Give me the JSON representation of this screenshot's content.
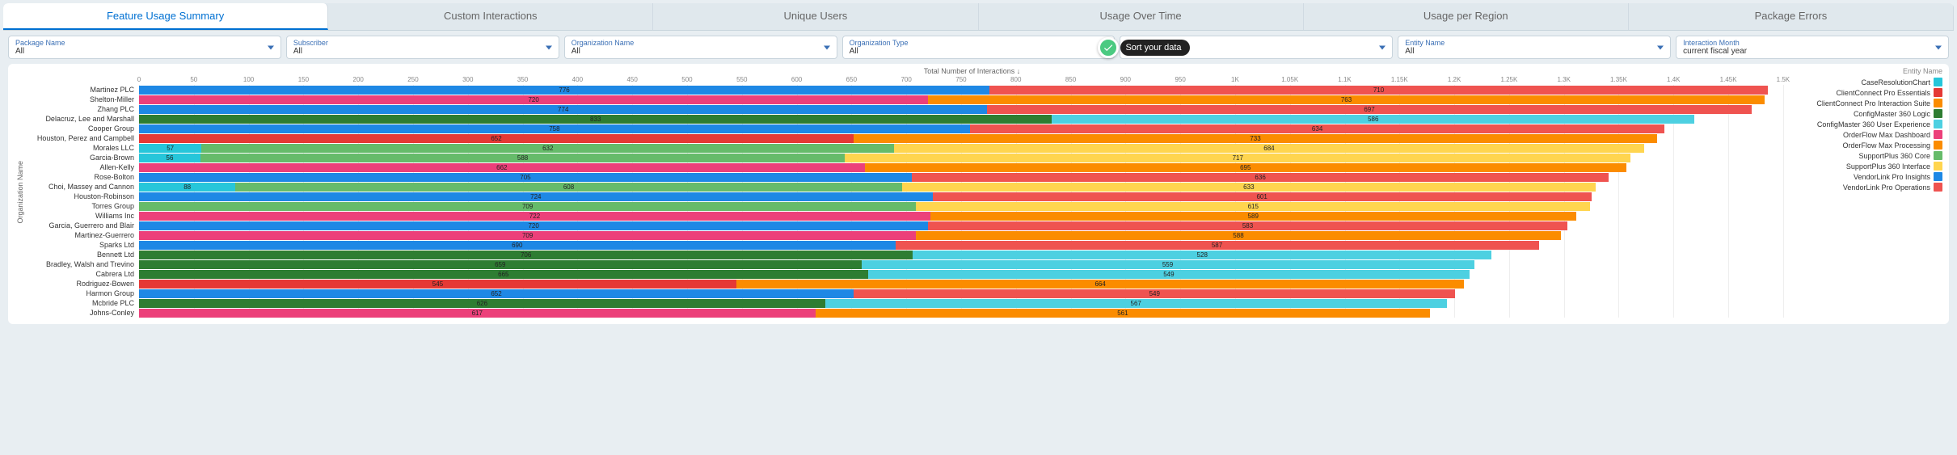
{
  "tabs": [
    "Feature Usage Summary",
    "Custom Interactions",
    "Unique Users",
    "Usage Over Time",
    "Usage per Region",
    "Package Errors"
  ],
  "active_tab": 0,
  "filters": [
    {
      "label": "Package Name",
      "value": "All"
    },
    {
      "label": "Subscriber",
      "value": "All"
    },
    {
      "label": "Organization Name",
      "value": "All"
    },
    {
      "label": "Organization Type",
      "value": "All"
    },
    {
      "label": "",
      "value": "",
      "tooltip": "Sort your data"
    },
    {
      "label": "Entity Name",
      "value": "All"
    },
    {
      "label": "Interaction Month",
      "value": "current fiscal year"
    }
  ],
  "chart": {
    "type": "stacked-bar-horizontal",
    "xaxis_title": "Total Number of Interactions ↓",
    "yaxis_title": "Organization Name",
    "xlim": [
      0,
      1520
    ],
    "xtick_step": 50,
    "xtick_labels": [
      "0",
      "50",
      "100",
      "150",
      "200",
      "250",
      "300",
      "350",
      "400",
      "450",
      "500",
      "550",
      "600",
      "650",
      "700",
      "750",
      "800",
      "850",
      "900",
      "950",
      "1K",
      "1.05K",
      "1.1K",
      "1.15K",
      "1.2K",
      "1.25K",
      "1.3K",
      "1.35K",
      "1.4K",
      "1.45K",
      "1.5K"
    ],
    "legend_title": "Entity Name",
    "legend": [
      {
        "name": "CaseResolutionChart",
        "color": "#26c6da"
      },
      {
        "name": "ClientConnect Pro Essentials",
        "color": "#e53935"
      },
      {
        "name": "ClientConnect Pro Interaction Suite",
        "color": "#fb8c00"
      },
      {
        "name": "ConfigMaster 360 Logic",
        "color": "#2e7d32"
      },
      {
        "name": "ConfigMaster 360 User Experience",
        "color": "#4dd0e1"
      },
      {
        "name": "OrderFlow Max Dashboard",
        "color": "#ec407a"
      },
      {
        "name": "OrderFlow Max Processing",
        "color": "#fb8c00"
      },
      {
        "name": "SupportPlus 360 Core",
        "color": "#66bb6a"
      },
      {
        "name": "SupportPlus 360 Interface",
        "color": "#ffd54f"
      },
      {
        "name": "VendorLink Pro Insights",
        "color": "#1e88e5"
      },
      {
        "name": "VendorLink Pro Operations",
        "color": "#ef5350"
      }
    ],
    "rows": [
      {
        "label": "Martinez PLC",
        "segs": [
          {
            "v": 776,
            "c": "#1e88e5"
          },
          {
            "v": 710,
            "c": "#ef5350"
          }
        ]
      },
      {
        "label": "Shelton-Miller",
        "segs": [
          {
            "v": 720,
            "c": "#ec407a"
          },
          {
            "v": 763,
            "c": "#fb8c00"
          }
        ]
      },
      {
        "label": "Zhang PLC",
        "segs": [
          {
            "v": 774,
            "c": "#1e88e5"
          },
          {
            "v": 697,
            "c": "#ef5350"
          }
        ]
      },
      {
        "label": "Delacruz, Lee and Marshall",
        "segs": [
          {
            "v": 833,
            "c": "#2e7d32"
          },
          {
            "v": 586,
            "c": "#4dd0e1"
          }
        ]
      },
      {
        "label": "Cooper Group",
        "segs": [
          {
            "v": 758,
            "c": "#1e88e5"
          },
          {
            "v": 634,
            "c": "#ef5350"
          }
        ]
      },
      {
        "label": "Houston, Perez and Campbell",
        "segs": [
          {
            "v": 652,
            "c": "#e53935"
          },
          {
            "v": 733,
            "c": "#fb8c00"
          }
        ]
      },
      {
        "label": "Morales LLC",
        "segs": [
          {
            "v": 57,
            "c": "#26c6da"
          },
          {
            "v": 632,
            "c": "#66bb6a"
          },
          {
            "v": 684,
            "c": "#ffd54f"
          }
        ]
      },
      {
        "label": "Garcia-Brown",
        "segs": [
          {
            "v": 56,
            "c": "#26c6da"
          },
          {
            "v": 588,
            "c": "#66bb6a"
          },
          {
            "v": 717,
            "c": "#ffd54f"
          }
        ]
      },
      {
        "label": "Allen-Kelly",
        "segs": [
          {
            "v": 662,
            "c": "#ec407a"
          },
          {
            "v": 695,
            "c": "#fb8c00"
          }
        ]
      },
      {
        "label": "Rose-Bolton",
        "segs": [
          {
            "v": 705,
            "c": "#1e88e5"
          },
          {
            "v": 636,
            "c": "#ef5350"
          }
        ]
      },
      {
        "label": "Choi, Massey and Cannon",
        "segs": [
          {
            "v": 88,
            "c": "#26c6da"
          },
          {
            "v": 608,
            "c": "#66bb6a"
          },
          {
            "v": 633,
            "c": "#ffd54f"
          }
        ]
      },
      {
        "label": "Houston-Robinson",
        "segs": [
          {
            "v": 724,
            "c": "#1e88e5"
          },
          {
            "v": 601,
            "c": "#ef5350"
          }
        ]
      },
      {
        "label": "Torres Group",
        "segs": [
          {
            "v": 709,
            "c": "#66bb6a"
          },
          {
            "v": 615,
            "c": "#ffd54f"
          }
        ]
      },
      {
        "label": "Williams Inc",
        "segs": [
          {
            "v": 722,
            "c": "#ec407a"
          },
          {
            "v": 589,
            "c": "#fb8c00"
          }
        ]
      },
      {
        "label": "Garcia, Guerrero and Blair",
        "segs": [
          {
            "v": 720,
            "c": "#1e88e5"
          },
          {
            "v": 583,
            "c": "#ef5350"
          }
        ]
      },
      {
        "label": "Martinez-Guerrero",
        "segs": [
          {
            "v": 709,
            "c": "#ec407a"
          },
          {
            "v": 588,
            "c": "#fb8c00"
          }
        ]
      },
      {
        "label": "Sparks Ltd",
        "segs": [
          {
            "v": 690,
            "c": "#1e88e5"
          },
          {
            "v": 587,
            "c": "#ef5350"
          }
        ]
      },
      {
        "label": "Bennett Ltd",
        "segs": [
          {
            "v": 706,
            "c": "#2e7d32"
          },
          {
            "v": 528,
            "c": "#4dd0e1"
          }
        ]
      },
      {
        "label": "Bradley, Walsh and Trevino",
        "segs": [
          {
            "v": 659,
            "c": "#2e7d32"
          },
          {
            "v": 559,
            "c": "#4dd0e1"
          }
        ]
      },
      {
        "label": "Cabrera Ltd",
        "segs": [
          {
            "v": 665,
            "c": "#2e7d32"
          },
          {
            "v": 549,
            "c": "#4dd0e1"
          }
        ]
      },
      {
        "label": "Rodriguez-Bowen",
        "segs": [
          {
            "v": 545,
            "c": "#e53935"
          },
          {
            "v": 664,
            "c": "#fb8c00"
          }
        ]
      },
      {
        "label": "Harmon Group",
        "segs": [
          {
            "v": 652,
            "c": "#1e88e5"
          },
          {
            "v": 549,
            "c": "#ef5350"
          }
        ]
      },
      {
        "label": "Mcbride PLC",
        "segs": [
          {
            "v": 626,
            "c": "#2e7d32"
          },
          {
            "v": 567,
            "c": "#4dd0e1"
          }
        ]
      },
      {
        "label": "Johns-Conley",
        "segs": [
          {
            "v": 617,
            "c": "#ec407a"
          },
          {
            "v": 561,
            "c": "#fb8c00"
          }
        ]
      }
    ]
  }
}
